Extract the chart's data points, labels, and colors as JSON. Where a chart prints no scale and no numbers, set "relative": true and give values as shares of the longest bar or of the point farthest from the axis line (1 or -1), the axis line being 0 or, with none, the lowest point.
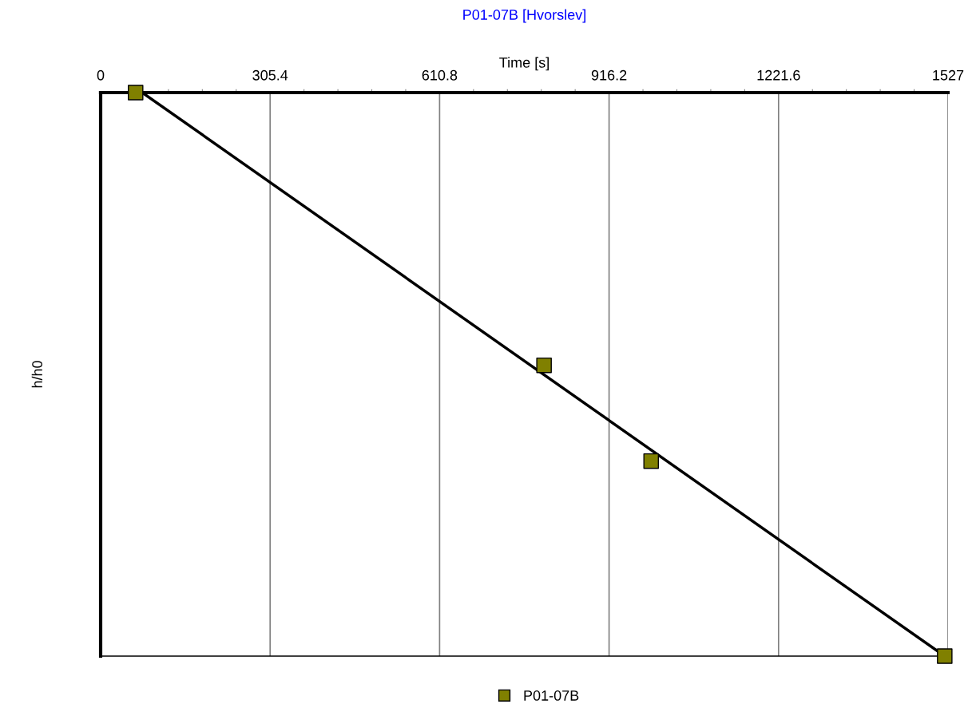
{
  "chart_data": {
    "type": "scatter",
    "title": "P01-07B [Hvorslev]",
    "xlabel": "Time [s]",
    "ylabel": "h/h0",
    "relative": true,
    "xlim": [
      0,
      1527
    ],
    "xticks": [
      0,
      {
        "value": 61.08,
        "label": null
      },
      {
        "value": 122.16,
        "label": null
      },
      {
        "value": 183.24,
        "label": null
      },
      {
        "value": 244.32,
        "label": null
      },
      305.4,
      {
        "value": 366.48,
        "label": null
      },
      {
        "value": 427.56,
        "label": null
      },
      {
        "value": 488.64,
        "label": null
      },
      {
        "value": 549.72,
        "label": null
      },
      610.8,
      {
        "value": 671.88,
        "label": null
      },
      {
        "value": 732.96,
        "label": null
      },
      {
        "value": 794.04,
        "label": null
      },
      {
        "value": 855.12,
        "label": null
      },
      916.2,
      {
        "value": 977.28,
        "label": null
      },
      {
        "value": 1038.36,
        "label": null
      },
      {
        "value": 1099.44,
        "label": null
      },
      {
        "value": 1160.52,
        "label": null
      },
      1221.6,
      {
        "value": 1282.68,
        "label": null
      },
      {
        "value": 1343.76,
        "label": null
      },
      {
        "value": 1404.84,
        "label": null
      },
      {
        "value": 1465.92,
        "label": null
      },
      1527
    ],
    "grid": "x",
    "legend": "bottom",
    "tick_labels": "x",
    "series": [
      {
        "name": "P01-07B",
        "color": "#808000",
        "marker": "square",
        "x": [
          63,
          799,
          992,
          1521
        ],
        "values": [
          1.0,
          0.516,
          0.346,
          0.0
        ]
      },
      {
        "type": "line",
        "color": "#000000",
        "x": [
          75,
          1521
        ],
        "values": [
          1.0,
          0.0
        ]
      }
    ]
  }
}
